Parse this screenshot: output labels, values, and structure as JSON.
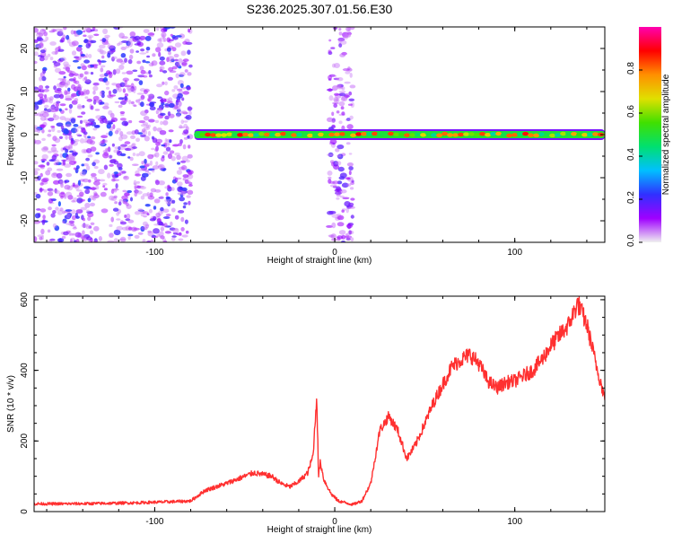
{
  "page_title": "S236.2025.307.01.56.E30",
  "chart_data": [
    {
      "type": "heatmap",
      "title": "S236.2025.307.01.56.E30",
      "xlabel": "Height of straight line (km)",
      "ylabel": "Frequency (Hz)",
      "xlim": [
        -167,
        150
      ],
      "ylim": [
        -25,
        25
      ],
      "xticks": [
        -100,
        0,
        100
      ],
      "xtick_labels": [
        "-100",
        "0",
        "100"
      ],
      "yticks": [
        -20,
        -10,
        0,
        10,
        20
      ],
      "ytick_labels": [
        "-20",
        "-10",
        "0",
        "10",
        "20"
      ],
      "colorbar": {
        "label": "Normalized spectral amplitude",
        "range": [
          0,
          1
        ],
        "ticks": [
          0.0,
          0.2,
          0.4,
          0.6,
          0.8
        ],
        "tick_labels": [
          "0.0",
          "0.2",
          "0.4",
          "0.6",
          "0.8"
        ],
        "colors": [
          "#f0f0f0",
          "#a000ff",
          "#3030ff",
          "#00c0ff",
          "#00e070",
          "#40e000",
          "#e0e000",
          "#ff9000",
          "#ff0000",
          "#ff00b0"
        ]
      },
      "regions": [
        {
          "name": "noise band",
          "x_range": [
            -167,
            -80
          ],
          "y_range": [
            -25,
            25
          ],
          "amplitude": [
            0.05,
            0.25
          ]
        },
        {
          "name": "zero-height noise band",
          "x_range": [
            -3,
            10
          ],
          "y_range": [
            -25,
            25
          ],
          "amplitude": [
            0.05,
            0.2
          ]
        },
        {
          "name": "signal line",
          "x_range": [
            -78,
            150
          ],
          "center_frequency_hz": 0,
          "amplitude": [
            0.4,
            0.9
          ]
        }
      ]
    },
    {
      "type": "line",
      "xlabel": "Height of straight line (km)",
      "ylabel": "SNR (10 * v/v)",
      "xlim": [
        -167,
        150
      ],
      "ylim": [
        0,
        610
      ],
      "xticks": [
        -100,
        0,
        100
      ],
      "xtick_labels": [
        "-100",
        "0",
        "100"
      ],
      "yticks": [
        0,
        200,
        400,
        600
      ],
      "ytick_labels": [
        "0",
        "200",
        "400",
        "600"
      ],
      "series": [
        {
          "name": "SNR",
          "color": "#ff3030",
          "x": [
            -167,
            -150,
            -130,
            -110,
            -90,
            -80,
            -72,
            -60,
            -50,
            -45,
            -40,
            -35,
            -30,
            -25,
            -20,
            -15,
            -12,
            -10,
            -9,
            -8,
            -6,
            -4,
            -2,
            0,
            2,
            6,
            10,
            15,
            20,
            25,
            30,
            35,
            40,
            45,
            50,
            55,
            60,
            65,
            70,
            75,
            80,
            85,
            90,
            95,
            100,
            105,
            110,
            115,
            120,
            125,
            130,
            135,
            140,
            145,
            150
          ],
          "y": [
            22,
            22,
            23,
            25,
            28,
            30,
            60,
            80,
            100,
            110,
            105,
            100,
            80,
            70,
            85,
            110,
            160,
            330,
            100,
            140,
            90,
            70,
            50,
            40,
            30,
            25,
            20,
            30,
            80,
            230,
            270,
            230,
            150,
            190,
            250,
            310,
            360,
            410,
            430,
            445,
            420,
            370,
            350,
            365,
            370,
            385,
            400,
            430,
            470,
            500,
            530,
            590,
            530,
            420,
            320
          ]
        }
      ]
    }
  ]
}
